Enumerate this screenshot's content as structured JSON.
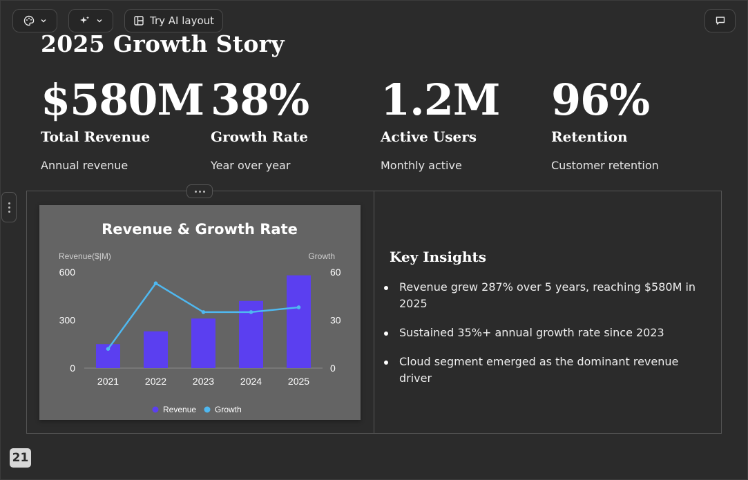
{
  "toolbar": {
    "try_ai_label": "Try AI layout",
    "theme_icon": "palette-icon",
    "ai_icon": "sparkle-icon",
    "layout_icon": "layout-icon",
    "comment_icon": "comment-icon"
  },
  "slide": {
    "title": "2025 Growth Story",
    "stats": [
      {
        "value": "$580M",
        "label": "Total Revenue",
        "sub": "Annual revenue"
      },
      {
        "value": "38%",
        "label": "Growth Rate",
        "sub": "Year over year"
      },
      {
        "value": "1.2M",
        "label": "Active Users",
        "sub": "Monthly active"
      },
      {
        "value": "96%",
        "label": "Retention",
        "sub": "Customer retention"
      }
    ],
    "insights": {
      "title": "Key Insights",
      "items": [
        "Revenue grew 287% over 5 years, reaching $580M in 2025",
        "Sustained 35%+ annual growth rate since 2023",
        "Cloud segment emerged as the dominant revenue driver"
      ]
    },
    "page_number": "21"
  },
  "chart_data": {
    "type": "bar",
    "title": "Revenue & Growth Rate",
    "categories": [
      "2021",
      "2022",
      "2023",
      "2024",
      "2025"
    ],
    "ylabel": "Revenue($|M)",
    "y2label": "Growth",
    "ylim": [
      0,
      600
    ],
    "y2lim": [
      0,
      60
    ],
    "yticks": [
      "0",
      "300",
      "600"
    ],
    "y2ticks": [
      "0",
      "30",
      "60"
    ],
    "series": [
      {
        "name": "Revenue",
        "type": "bar",
        "axis": "left",
        "values": [
          150,
          230,
          310,
          420,
          580
        ],
        "color": "#5b3ff0"
      },
      {
        "name": "Growth",
        "type": "line",
        "axis": "right",
        "values": [
          12,
          53,
          35,
          35,
          38
        ],
        "color": "#4fb8f0"
      }
    ],
    "legend": "bottom",
    "grid": false
  }
}
